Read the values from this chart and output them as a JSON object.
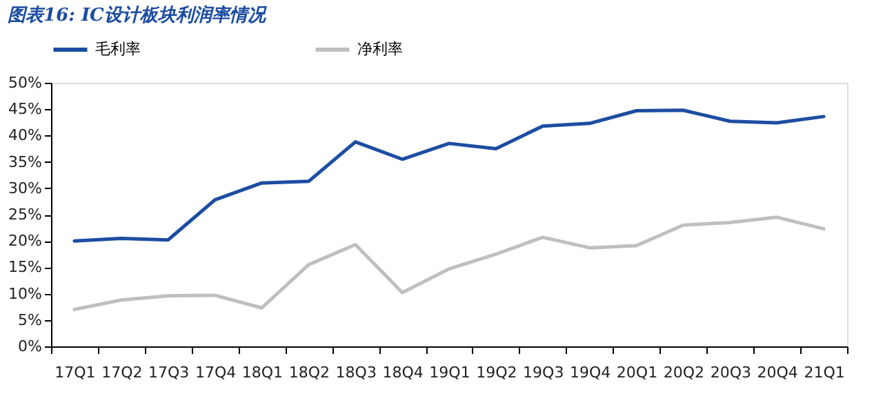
{
  "chart_data": {
    "type": "line",
    "title": "图表16: IC设计板块利润率情况",
    "categories": [
      "17Q1",
      "17Q2",
      "17Q3",
      "17Q4",
      "18Q1",
      "18Q2",
      "18Q3",
      "18Q4",
      "19Q1",
      "19Q2",
      "19Q3",
      "19Q4",
      "20Q1",
      "20Q2",
      "20Q3",
      "20Q4",
      "21Q1"
    ],
    "series": [
      {
        "name": "毛利率",
        "color": "#1c4da1",
        "values": [
          20,
          20.5,
          20.2,
          27.8,
          31,
          31.3,
          38.8,
          35.5,
          38.5,
          37.5,
          41.8,
          42.3,
          44.7,
          44.8,
          42.7,
          42.4,
          43.6
        ]
      },
      {
        "name": "净利率",
        "color": "#bfbfbf",
        "values": [
          7,
          8.8,
          9.6,
          9.7,
          7.3,
          15.5,
          19.3,
          10.2,
          14.7,
          17.5,
          20.7,
          18.7,
          19.1,
          23,
          23.5,
          24.5,
          22.3
        ]
      }
    ],
    "ylim": [
      0,
      50
    ],
    "yticks": [
      {
        "value": 0,
        "label": "0%"
      },
      {
        "value": 5,
        "label": "5%"
      },
      {
        "value": 10,
        "label": "10%"
      },
      {
        "value": 15,
        "label": "15%"
      },
      {
        "value": 20,
        "label": "20%"
      },
      {
        "value": 25,
        "label": "25%"
      },
      {
        "value": 30,
        "label": "30%"
      },
      {
        "value": 35,
        "label": "35%"
      },
      {
        "value": 40,
        "label": "40%"
      },
      {
        "value": 45,
        "label": "45%"
      },
      {
        "value": 50,
        "label": "50%"
      }
    ],
    "grid": false,
    "legend": "top",
    "marker": "none",
    "line_style": "solid"
  }
}
